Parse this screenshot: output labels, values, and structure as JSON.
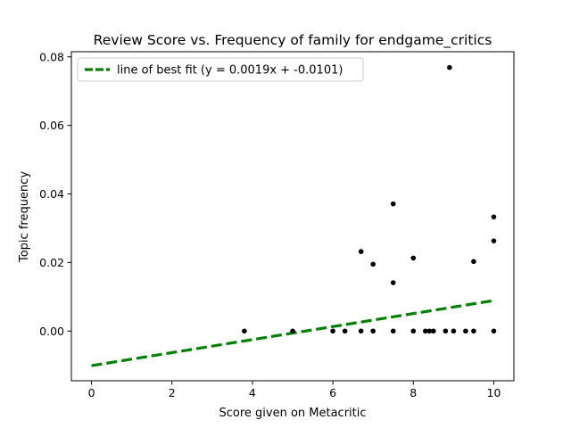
{
  "chart_data": {
    "type": "scatter",
    "title": "Review Score vs. Frequency of family for endgame_critics",
    "xlabel": "Score given on Metacritic",
    "ylabel": "Topic frequency",
    "xlim": [
      -0.5,
      10.5
    ],
    "ylim": [
      -0.0145,
      0.0815
    ],
    "xticks": [
      0,
      2,
      4,
      6,
      8,
      10
    ],
    "xtick_labels": [
      "0",
      "2",
      "4",
      "6",
      "8",
      "10"
    ],
    "yticks": [
      0.0,
      0.02,
      0.04,
      0.06,
      0.08
    ],
    "ytick_labels": [
      "0.00",
      "0.02",
      "0.04",
      "0.06",
      "0.08"
    ],
    "grid": false,
    "points_color": "#000000",
    "points": [
      {
        "x": 3.8,
        "y": 0.0
      },
      {
        "x": 5.0,
        "y": 0.0
      },
      {
        "x": 6.0,
        "y": 0.0
      },
      {
        "x": 6.3,
        "y": 0.0
      },
      {
        "x": 6.7,
        "y": 0.0
      },
      {
        "x": 6.7,
        "y": 0.0232
      },
      {
        "x": 7.0,
        "y": 0.0
      },
      {
        "x": 7.0,
        "y": 0.0195
      },
      {
        "x": 7.5,
        "y": 0.0
      },
      {
        "x": 7.5,
        "y": 0.0141
      },
      {
        "x": 7.5,
        "y": 0.0371
      },
      {
        "x": 8.0,
        "y": 0.0
      },
      {
        "x": 8.0,
        "y": 0.0213
      },
      {
        "x": 8.3,
        "y": 0.0
      },
      {
        "x": 8.4,
        "y": 0.0
      },
      {
        "x": 8.5,
        "y": 0.0
      },
      {
        "x": 8.8,
        "y": 0.0
      },
      {
        "x": 8.9,
        "y": 0.0769
      },
      {
        "x": 9.0,
        "y": 0.0
      },
      {
        "x": 9.3,
        "y": 0.0
      },
      {
        "x": 9.5,
        "y": 0.0
      },
      {
        "x": 9.5,
        "y": 0.0203
      },
      {
        "x": 10.0,
        "y": 0.0
      },
      {
        "x": 10.0,
        "y": 0.0263
      },
      {
        "x": 10.0,
        "y": 0.0333
      }
    ],
    "best_fit": {
      "slope": 0.0019,
      "intercept": -0.0101,
      "x_range": [
        0,
        10
      ],
      "color": "#008000",
      "style": "dashed"
    },
    "legend": {
      "placement": "top-left",
      "entries": [
        "line of best fit (y = 0.0019x + -0.0101)"
      ]
    }
  }
}
